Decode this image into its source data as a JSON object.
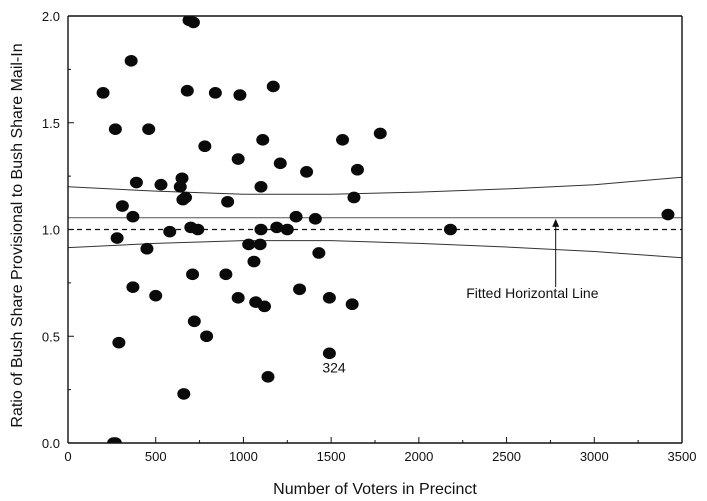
{
  "chart_data": {
    "type": "scatter",
    "title": "",
    "xlabel": "Number of Voters in Precinct",
    "ylabel": "Ratio of Bush Share Provisional to Bush Share Mail-In",
    "xlim": [
      0,
      3500
    ],
    "ylim": [
      0.0,
      2.0
    ],
    "x_ticks": [
      "0",
      "500",
      "1000",
      "1500",
      "2000",
      "2500",
      "3000",
      "3500"
    ],
    "y_ticks": [
      "0.0",
      "0.5",
      "1.0",
      "1.5",
      "2.0"
    ],
    "grid": false,
    "legend": "none",
    "reference_line": {
      "y": 1.0,
      "style": "dashed"
    },
    "fitted_line": {
      "y": 1.055
    },
    "confidence_band": {
      "upper": [
        [
          0,
          1.2
        ],
        [
          500,
          1.18
        ],
        [
          1000,
          1.165
        ],
        [
          1500,
          1.165
        ],
        [
          2000,
          1.175
        ],
        [
          2500,
          1.19
        ],
        [
          3000,
          1.21
        ],
        [
          3500,
          1.245
        ]
      ],
      "lower": [
        [
          0,
          0.915
        ],
        [
          500,
          0.935
        ],
        [
          1000,
          0.948
        ],
        [
          1500,
          0.948
        ],
        [
          2000,
          0.935
        ],
        [
          2500,
          0.918
        ],
        [
          3000,
          0.897
        ],
        [
          3500,
          0.868
        ]
      ]
    },
    "annotations": [
      {
        "text": "Fitted Horizontal Line",
        "x": 2270,
        "y": 0.68
      },
      {
        "text": "324",
        "x": 1450,
        "y": 0.33
      }
    ],
    "arrow": {
      "from": [
        2780,
        0.73
      ],
      "to": [
        2780,
        1.05
      ]
    },
    "points": [
      {
        "x": 200,
        "y": 1.64
      },
      {
        "x": 270,
        "y": 1.47
      },
      {
        "x": 360,
        "y": 1.79
      },
      {
        "x": 460,
        "y": 1.47
      },
      {
        "x": 690,
        "y": 1.98
      },
      {
        "x": 715,
        "y": 1.97
      },
      {
        "x": 680,
        "y": 1.65
      },
      {
        "x": 840,
        "y": 1.64
      },
      {
        "x": 980,
        "y": 1.63
      },
      {
        "x": 1170,
        "y": 1.67
      },
      {
        "x": 1110,
        "y": 1.42
      },
      {
        "x": 1565,
        "y": 1.42
      },
      {
        "x": 1780,
        "y": 1.45
      },
      {
        "x": 780,
        "y": 1.39
      },
      {
        "x": 970,
        "y": 1.33
      },
      {
        "x": 1210,
        "y": 1.31
      },
      {
        "x": 1360,
        "y": 1.27
      },
      {
        "x": 1650,
        "y": 1.28
      },
      {
        "x": 650,
        "y": 1.24
      },
      {
        "x": 390,
        "y": 1.22
      },
      {
        "x": 530,
        "y": 1.21
      },
      {
        "x": 640,
        "y": 1.2
      },
      {
        "x": 1100,
        "y": 1.2
      },
      {
        "x": 1630,
        "y": 1.15
      },
      {
        "x": 670,
        "y": 1.15
      },
      {
        "x": 655,
        "y": 1.14
      },
      {
        "x": 910,
        "y": 1.13
      },
      {
        "x": 310,
        "y": 1.11
      },
      {
        "x": 370,
        "y": 1.06
      },
      {
        "x": 1300,
        "y": 1.06
      },
      {
        "x": 1410,
        "y": 1.05
      },
      {
        "x": 700,
        "y": 1.01
      },
      {
        "x": 740,
        "y": 1.0
      },
      {
        "x": 1100,
        "y": 1.0
      },
      {
        "x": 1190,
        "y": 1.01
      },
      {
        "x": 1250,
        "y": 1.0
      },
      {
        "x": 580,
        "y": 0.99
      },
      {
        "x": 280,
        "y": 0.96
      },
      {
        "x": 1030,
        "y": 0.93
      },
      {
        "x": 1095,
        "y": 0.93
      },
      {
        "x": 450,
        "y": 0.91
      },
      {
        "x": 1430,
        "y": 0.89
      },
      {
        "x": 1060,
        "y": 0.85
      },
      {
        "x": 710,
        "y": 0.79
      },
      {
        "x": 900,
        "y": 0.79
      },
      {
        "x": 370,
        "y": 0.73
      },
      {
        "x": 1320,
        "y": 0.72
      },
      {
        "x": 500,
        "y": 0.69
      },
      {
        "x": 970,
        "y": 0.68
      },
      {
        "x": 1490,
        "y": 0.68
      },
      {
        "x": 1070,
        "y": 0.66
      },
      {
        "x": 1120,
        "y": 0.64
      },
      {
        "x": 1620,
        "y": 0.65
      },
      {
        "x": 720,
        "y": 0.57
      },
      {
        "x": 790,
        "y": 0.5
      },
      {
        "x": 290,
        "y": 0.47
      },
      {
        "x": 1490,
        "y": 0.42
      },
      {
        "x": 1140,
        "y": 0.31
      },
      {
        "x": 660,
        "y": 0.23
      },
      {
        "x": 260,
        "y": 0.0
      },
      {
        "x": 270,
        "y": 0.0
      },
      {
        "x": 2180,
        "y": 1.0
      },
      {
        "x": 3420,
        "y": 1.07
      }
    ]
  }
}
